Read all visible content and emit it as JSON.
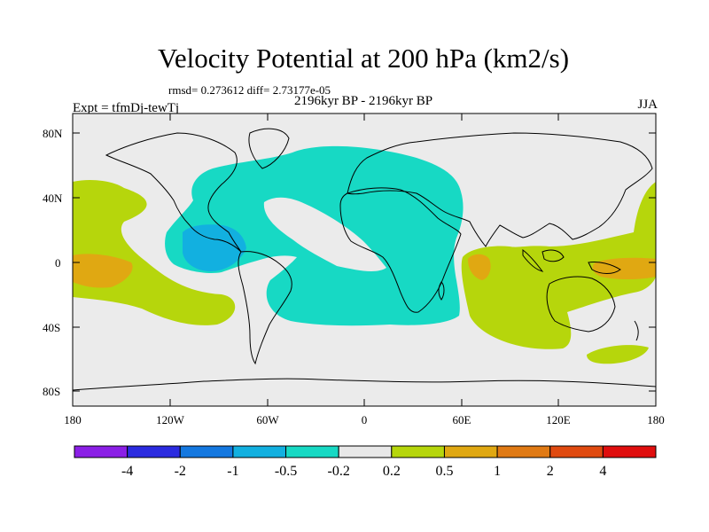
{
  "header": {
    "title": "Velocity Potential at 200 hPa (km2/s)",
    "stats": "rmsd= 0.273612 diff= 2.73177e-05",
    "subtitle": "2196kyr BP - 2196kyr BP",
    "experiment": "Expt = tfmDj-tewTj",
    "season": "JJA"
  },
  "axes": {
    "lat_labels": [
      "80N",
      "40N",
      "0",
      "40S",
      "80S"
    ],
    "lon_labels": [
      "180",
      "120W",
      "60W",
      "0",
      "60E",
      "120E",
      "180"
    ]
  },
  "colorbar": {
    "labels": [
      "-4",
      "-2",
      "-1",
      "-0.5",
      "-0.2",
      "0.2",
      "0.5",
      "1",
      "2",
      "4"
    ],
    "colors": [
      "#8b1fe6",
      "#2b2be0",
      "#1478e0",
      "#12b0e0",
      "#17d9c4",
      "#e8e8e8",
      "#b6d60c",
      "#e0a812",
      "#e07a14",
      "#e04a10",
      "#e00e0e"
    ]
  },
  "field_colors": {
    "land_ocean": "#ebebeb",
    "positive_weak": "#b6d60c",
    "positive_mid": "#e0a812",
    "negative_weak": "#17d9c4",
    "negative_mid": "#12b0e0"
  }
}
